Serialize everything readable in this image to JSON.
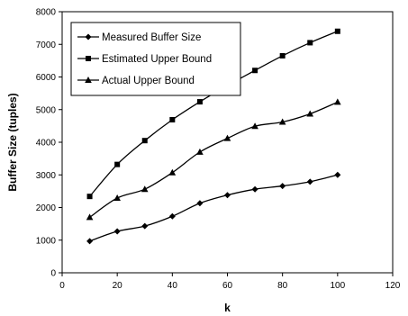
{
  "chart_data": {
    "type": "line",
    "title": "",
    "xlabel": "k",
    "ylabel": "Buffer Size (tuples)",
    "xlim": [
      0,
      120
    ],
    "ylim": [
      0,
      8000
    ],
    "xticks": [
      0,
      20,
      40,
      60,
      80,
      100,
      120
    ],
    "yticks": [
      0,
      1000,
      2000,
      3000,
      4000,
      5000,
      6000,
      7000,
      8000
    ],
    "grid": false,
    "legend_position": "top-left",
    "x": [
      10,
      20,
      30,
      40,
      50,
      60,
      70,
      80,
      90,
      100
    ],
    "series": [
      {
        "name": "Measured Buffer Size",
        "marker": "diamond",
        "color": "#000000",
        "values": [
          970,
          1270,
          1430,
          1730,
          2130,
          2380,
          2560,
          2660,
          2790,
          3000
        ]
      },
      {
        "name": "Estimated Upper Bound",
        "marker": "square",
        "color": "#000000",
        "values": [
          2340,
          3320,
          4050,
          4690,
          5240,
          5740,
          6200,
          6650,
          7050,
          7400
        ]
      },
      {
        "name": "Actual Upper Bound",
        "marker": "triangle",
        "color": "#000000",
        "values": [
          1700,
          2290,
          2560,
          3070,
          3700,
          4120,
          4490,
          4620,
          4870,
          5230
        ]
      }
    ]
  }
}
